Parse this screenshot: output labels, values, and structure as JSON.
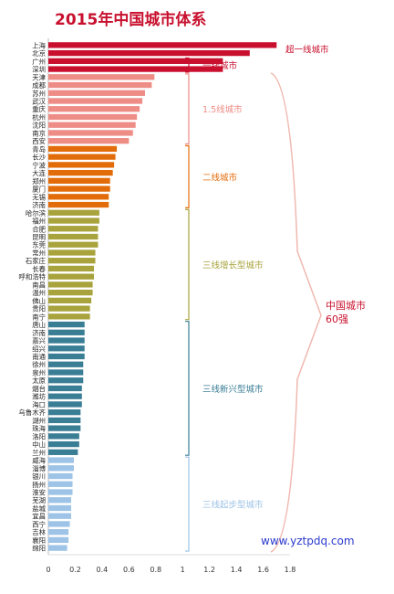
{
  "chart_data": {
    "type": "bar",
    "title": "2015年中国城市体系",
    "orientation": "horizontal",
    "xlim": [
      0,
      1.8
    ],
    "x_ticks": [
      "0",
      "0.2",
      "0.4",
      "0.6",
      "0.8",
      "1",
      "1.2",
      "1.4",
      "1.6",
      "1.8"
    ],
    "categories": [
      "上海",
      "北京",
      "广州",
      "深圳",
      "天津",
      "成都",
      "苏州",
      "武汉",
      "重庆",
      "杭州",
      "沈阳",
      "南京",
      "西安",
      "青岛",
      "长沙",
      "宁波",
      "大连",
      "郑州",
      "厦门",
      "无锡",
      "济南",
      "哈尔滨",
      "福州",
      "合肥",
      "昆明",
      "东莞",
      "常州",
      "石家庄",
      "长春",
      "呼和浩特",
      "南昌",
      "温州",
      "佛山",
      "贵阳",
      "南宁",
      "唐山",
      "济南",
      "嘉兴",
      "绍兴",
      "南通",
      "徐州",
      "泉州",
      "太原",
      "烟台",
      "潍坊",
      "海口",
      "乌鲁木齐",
      "湖州",
      "珠海",
      "洛阳",
      "中山",
      "兰州",
      "威海",
      "淄博",
      "银川",
      "扬州",
      "淮安",
      "芜湖",
      "盐城",
      "宜昌",
      "西宁",
      "吉林",
      "襄阳",
      "绵阳"
    ],
    "values": [
      1.7,
      1.5,
      1.3,
      1.3,
      0.79,
      0.77,
      0.72,
      0.7,
      0.68,
      0.66,
      0.65,
      0.63,
      0.6,
      0.51,
      0.5,
      0.49,
      0.48,
      0.46,
      0.46,
      0.45,
      0.45,
      0.38,
      0.38,
      0.37,
      0.37,
      0.37,
      0.35,
      0.35,
      0.34,
      0.34,
      0.33,
      0.33,
      0.32,
      0.31,
      0.31,
      0.27,
      0.27,
      0.27,
      0.27,
      0.27,
      0.26,
      0.26,
      0.26,
      0.25,
      0.25,
      0.25,
      0.24,
      0.24,
      0.24,
      0.23,
      0.23,
      0.22,
      0.19,
      0.19,
      0.18,
      0.18,
      0.18,
      0.17,
      0.17,
      0.17,
      0.16,
      0.15,
      0.15,
      0.14
    ],
    "tiers": [
      {
        "name": "超一线城市",
        "start": 0,
        "count": 2,
        "color": "#c8102e"
      },
      {
        "name": "一线城市",
        "start": 2,
        "count": 2,
        "color": "#c8102e"
      },
      {
        "name": "1.5线城市",
        "start": 4,
        "count": 9,
        "color": "#ee8c86"
      },
      {
        "name": "二线城市",
        "start": 13,
        "count": 8,
        "color": "#e36c0a"
      },
      {
        "name": "三线增长型城市",
        "start": 21,
        "count": 14,
        "color": "#a8a33c"
      },
      {
        "name": "三线新兴型城市",
        "start": 35,
        "count": 17,
        "color": "#3a7e96"
      },
      {
        "name": "三线起步型城市",
        "start": 52,
        "count": 12,
        "color": "#9dc3e6"
      }
    ],
    "bracket_label_1": "中国城市",
    "bracket_label_2": "60强",
    "bracket_color": "#c8102e",
    "watermark": "www.yztpdq.com",
    "watermark_color": "#2b3acc"
  }
}
